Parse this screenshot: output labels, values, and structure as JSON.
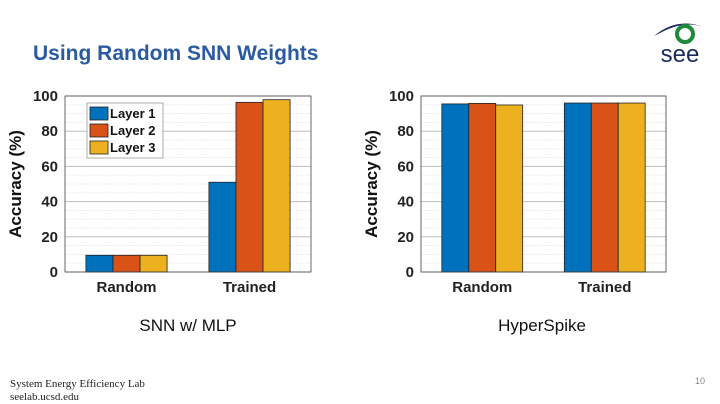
{
  "slide": {
    "title": "Using Random SNN Weights",
    "page_number": "10",
    "footer": {
      "line1": "System Energy Efficiency Lab",
      "line2": "seelab.ucsd.edu"
    },
    "logo_text": "see",
    "colors": {
      "title": "#2a5aa0",
      "layer1": "#0072bd",
      "layer2": "#d95319",
      "layer3": "#edb120",
      "logo_green": "#1e8a3c",
      "logo_navy": "#1b2a5c"
    }
  },
  "chart_data": [
    {
      "type": "bar",
      "subtitle": "SNN w/ MLP",
      "categories": [
        "Random",
        "Trained"
      ],
      "series": [
        {
          "name": "Layer 1",
          "values": [
            9.5,
            51
          ]
        },
        {
          "name": "Layer 2",
          "values": [
            9.5,
            96.4
          ]
        },
        {
          "name": "Layer 3",
          "values": [
            9.5,
            97.9
          ]
        }
      ],
      "ylabel": "Accuracy (%)",
      "xlabel": "",
      "ylim": [
        0,
        100
      ],
      "yticks": [
        "0",
        "20",
        "40",
        "60",
        "80",
        "100"
      ],
      "grid": true,
      "legend": "top-left"
    },
    {
      "type": "bar",
      "subtitle": "HyperSpike",
      "categories": [
        "Random",
        "Trained"
      ],
      "series": [
        {
          "values": [
            95.5,
            96.0
          ]
        },
        {
          "values": [
            95.8,
            96.0
          ]
        },
        {
          "values": [
            94.9,
            96.0
          ]
        }
      ],
      "ylabel": "Accuracy (%)",
      "xlabel": "",
      "ylim": [
        0,
        100
      ],
      "yticks": [
        "0",
        "20",
        "40",
        "60",
        "80",
        "100"
      ],
      "grid": true
    }
  ]
}
